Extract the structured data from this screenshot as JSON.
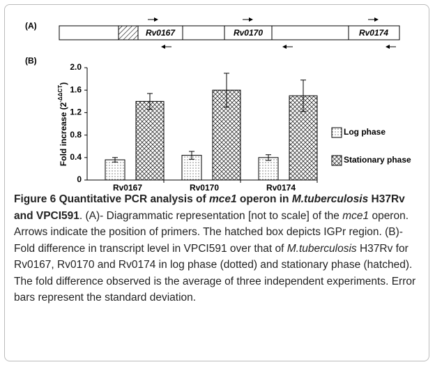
{
  "figure": {
    "panel_a_label": "(A)",
    "panel_b_label": "(B)",
    "genes": [
      "Rv0167",
      "Rv0170",
      "Rv0174"
    ]
  },
  "chart_data": {
    "type": "bar",
    "y_label": {
      "main": "Fold increase (2",
      "sup": "-ΔΔCT",
      "end": ")"
    },
    "categories": [
      "Rv0167",
      "Rv0170",
      "Rv0174"
    ],
    "series": [
      {
        "name": "Log phase",
        "color": "#000000",
        "pattern": "dots",
        "values": [
          0.36,
          0.44,
          0.4
        ],
        "errors": [
          0.04,
          0.07,
          0.05
        ]
      },
      {
        "name": "Stationary phase",
        "color": "#000000",
        "pattern": "crosshatch",
        "values": [
          1.4,
          1.6,
          1.5
        ],
        "errors": [
          0.14,
          0.3,
          0.28
        ]
      }
    ],
    "ylim": [
      0,
      2
    ],
    "yticks": [
      0,
      0.4,
      0.8,
      1.2,
      1.6,
      {
        "value": 2,
        "label": "2.0"
      }
    ],
    "grid": false,
    "legend": "right"
  },
  "caption": [
    {
      "style": "bold",
      "text": "Figure 6 Quantitative PCR analysis of "
    },
    {
      "style": "bold-italic",
      "text": "mce1"
    },
    {
      "style": "bold",
      "text": " operon in "
    },
    {
      "style": "bold-italic",
      "text": "M.tuberculosis"
    },
    {
      "style": "bold",
      "text": " H37Rv and VPCI591"
    },
    {
      "style": "normal",
      "text": ". (A)- Diagrammatic representation [not to scale] of the "
    },
    {
      "style": "italic",
      "text": "mce1"
    },
    {
      "style": "normal",
      "text": " operon. Arrows indicate the position of primers. The hatched box depicts IGPr region. (B)- Fold difference in transcript level in VPCI591 over that of "
    },
    {
      "style": "italic",
      "text": "M.tuberculosis"
    },
    {
      "style": "normal",
      "text": " H37Rv for Rv0167, Rv0170 and Rv0174 in log phase (dotted) and stationary phase (hatched). The fold difference observed is the average of three independent experiments. Error bars represent the standard deviation."
    }
  ]
}
